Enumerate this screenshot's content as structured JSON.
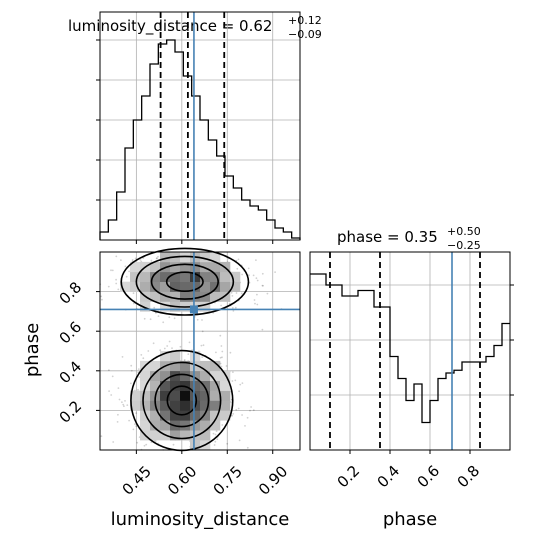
{
  "chart_data": {
    "type": "corner",
    "parameters": [
      "luminosity_distance",
      "phase"
    ],
    "truths": {
      "luminosity_distance": 0.64,
      "phase": 0.71
    },
    "grid": true,
    "colors": {
      "truth": "#4682b4",
      "hist": "#000000",
      "grid": "#b0b0b0",
      "density": "#000000"
    },
    "panels": {
      "luminosity_distance_hist": {
        "title_main": "luminosity_distance = 0.62",
        "title_sup": "+0.12",
        "title_sub": "−0.09",
        "xlim": [
          0.33,
          0.99
        ],
        "bin_edges": [
          0.33,
          0.3575,
          0.385,
          0.4125,
          0.44,
          0.4675,
          0.495,
          0.5225,
          0.55,
          0.5775,
          0.605,
          0.6325,
          0.66,
          0.6875,
          0.715,
          0.7425,
          0.77,
          0.7975,
          0.825,
          0.8525,
          0.88,
          0.9075,
          0.935,
          0.9625,
          0.99
        ],
        "counts": [
          0.2,
          0.5,
          1.2,
          2.3,
          3.0,
          3.6,
          4.4,
          4.9,
          5.0,
          4.7,
          4.1,
          3.6,
          3.0,
          2.5,
          2.1,
          1.6,
          1.3,
          1.0,
          0.85,
          0.75,
          0.5,
          0.3,
          0.2,
          0.05
        ],
        "quantiles": [
          0.53,
          0.62,
          0.74
        ]
      },
      "phase_hist": {
        "title_main": "phase = 0.35",
        "title_sup": "+0.50",
        "title_sub": "−0.25",
        "xlim": [
          0.0,
          1.0
        ],
        "bin_edges": [
          0.0,
          0.04,
          0.08,
          0.12,
          0.16,
          0.2,
          0.24,
          0.28,
          0.32,
          0.36,
          0.4,
          0.44,
          0.48,
          0.52,
          0.56,
          0.6,
          0.64,
          0.68,
          0.72,
          0.76,
          0.8,
          0.84,
          0.88,
          0.92,
          0.96,
          1.0
        ],
        "counts": [
          3.2,
          3.2,
          3.0,
          3.0,
          2.8,
          2.8,
          2.9,
          2.9,
          2.6,
          2.6,
          1.7,
          1.3,
          0.9,
          1.2,
          0.5,
          0.9,
          1.3,
          1.4,
          1.45,
          1.6,
          1.6,
          1.6,
          1.7,
          1.9,
          2.3
        ],
        "ymax": 3.6,
        "quantiles": [
          0.1,
          0.35,
          0.85
        ]
      },
      "joint": {
        "xlim": [
          0.33,
          0.99
        ],
        "ylim": [
          0.0,
          1.0
        ],
        "clusters": [
          {
            "center": [
              0.6,
              0.25
            ],
            "spread": [
              0.08,
              0.12
            ],
            "n": 2200
          },
          {
            "center": [
              0.61,
              0.85
            ],
            "spread": [
              0.1,
              0.08
            ],
            "n": 1400
          }
        ]
      }
    },
    "axes": {
      "ld_ticks": [
        "0.45",
        "0.60",
        "0.75",
        "0.90"
      ],
      "phase_ticks": [
        "0.2",
        "0.4",
        "0.6",
        "0.8"
      ],
      "xlabel_left": "luminosity_distance",
      "xlabel_right": "phase",
      "ylabel": "phase"
    }
  }
}
